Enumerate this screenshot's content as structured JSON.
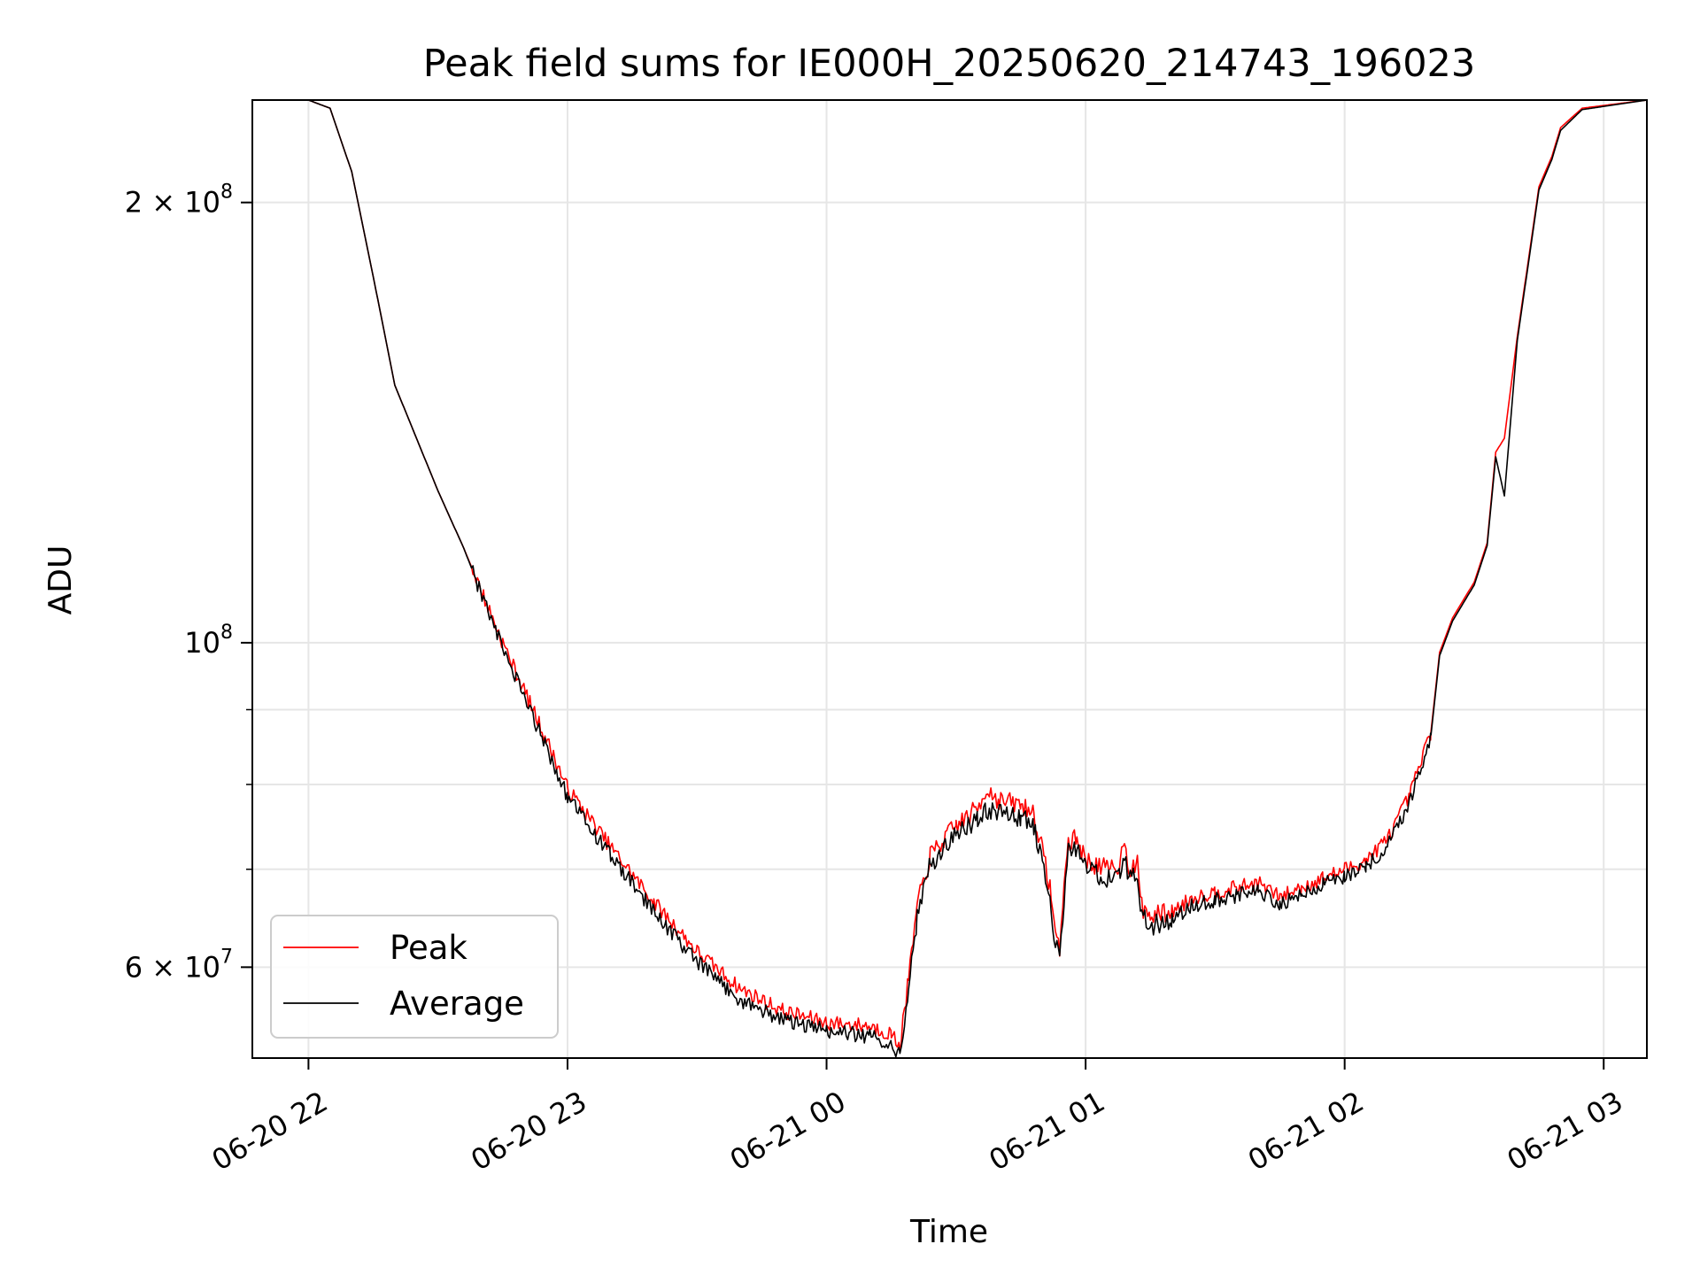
{
  "chart_data": {
    "type": "line",
    "title": "Peak field sums for IE000H_20250620_214743_196023",
    "xlabel": "Time",
    "ylabel": "ADU",
    "x_axis": {
      "kind": "datetime",
      "range": [
        "2025-06-20 21:47",
        "2025-06-21 03:10"
      ],
      "tick_values": [
        "2025-06-20 22:00",
        "2025-06-20 23:00",
        "2025-06-21 00:00",
        "2025-06-21 01:00",
        "2025-06-21 02:00",
        "2025-06-21 03:00"
      ],
      "tick_labels": [
        "06-20 22",
        "06-20 23",
        "06-21 00",
        "06-21 01",
        "06-21 02",
        "06-21 03"
      ],
      "tick_rotation_deg": 30
    },
    "y_axis": {
      "scale": "log",
      "range": [
        52000000,
        235000000
      ],
      "major_ticks": [
        {
          "value": 60000000,
          "mantissa": "6",
          "exponent": "7"
        },
        {
          "value": 100000000,
          "mantissa": "",
          "exponent": "8"
        },
        {
          "value": 200000000,
          "mantissa": "2",
          "exponent": "8"
        }
      ],
      "minor_ticks": [
        60000000,
        70000000,
        80000000,
        90000000,
        100000000,
        200000000
      ],
      "tick_base": "10",
      "tick_times": "×"
    },
    "grid": true,
    "legend": {
      "placement": "lower-left",
      "entries": [
        "Peak",
        "Average"
      ]
    },
    "series": [
      {
        "name": "Peak",
        "color": "#ff0000",
        "points": [
          [
            "2025-06-20 21:47",
            235000000
          ],
          [
            "2025-06-20 22:00",
            235000000
          ],
          [
            "2025-06-20 22:05",
            232000000
          ],
          [
            "2025-06-20 22:10",
            210000000
          ],
          [
            "2025-06-20 22:15",
            178000000
          ],
          [
            "2025-06-20 22:20",
            150000000
          ],
          [
            "2025-06-20 22:30",
            127000000
          ],
          [
            "2025-06-20 22:36",
            116000000
          ],
          [
            "2025-06-20 22:45",
            100000000
          ],
          [
            "2025-06-20 22:55",
            86000000
          ],
          [
            "2025-06-20 23:00",
            79500000
          ],
          [
            "2025-06-20 23:10",
            72500000
          ],
          [
            "2025-06-20 23:20",
            66500000
          ],
          [
            "2025-06-20 23:30",
            61500000
          ],
          [
            "2025-06-20 23:40",
            58000000
          ],
          [
            "2025-06-20 23:50",
            56000000
          ],
          [
            "2025-06-21 00:00",
            55000000
          ],
          [
            "2025-06-21 00:10",
            54700000
          ],
          [
            "2025-06-21 00:15",
            54000000
          ],
          [
            "2025-06-21 00:17",
            53000000
          ],
          [
            "2025-06-21 00:19",
            59000000
          ],
          [
            "2025-06-21 00:21",
            66000000
          ],
          [
            "2025-06-21 00:24",
            71500000
          ],
          [
            "2025-06-21 00:30",
            75000000
          ],
          [
            "2025-06-21 00:35",
            77000000
          ],
          [
            "2025-06-21 00:37",
            79500000
          ],
          [
            "2025-06-21 00:40",
            78000000
          ],
          [
            "2025-06-21 00:45",
            77500000
          ],
          [
            "2025-06-21 00:48",
            76500000
          ],
          [
            "2025-06-21 00:50",
            72000000
          ],
          [
            "2025-06-21 00:52",
            67500000
          ],
          [
            "2025-06-21 00:53",
            63000000
          ],
          [
            "2025-06-21 00:54",
            62000000
          ],
          [
            "2025-06-21 00:55",
            68000000
          ],
          [
            "2025-06-21 00:56",
            73000000
          ],
          [
            "2025-06-21 00:58",
            73500000
          ],
          [
            "2025-06-21 01:00",
            71000000
          ],
          [
            "2025-06-21 01:05",
            70000000
          ],
          [
            "2025-06-21 01:08",
            70500000
          ],
          [
            "2025-06-21 01:09",
            74000000
          ],
          [
            "2025-06-21 01:10",
            70000000
          ],
          [
            "2025-06-21 01:12",
            70500000
          ],
          [
            "2025-06-21 01:13",
            66000000
          ],
          [
            "2025-06-21 01:15",
            65000000
          ],
          [
            "2025-06-21 01:20",
            65500000
          ],
          [
            "2025-06-21 01:25",
            67000000
          ],
          [
            "2025-06-21 01:30",
            67500000
          ],
          [
            "2025-06-21 01:35",
            68000000
          ],
          [
            "2025-06-21 01:40",
            68500000
          ],
          [
            "2025-06-21 01:45",
            67000000
          ],
          [
            "2025-06-21 01:50",
            68000000
          ],
          [
            "2025-06-21 01:55",
            69000000
          ],
          [
            "2025-06-21 02:00",
            70000000
          ],
          [
            "2025-06-21 02:05",
            71000000
          ],
          [
            "2025-06-21 02:10",
            73500000
          ],
          [
            "2025-06-21 02:15",
            78500000
          ],
          [
            "2025-06-21 02:20",
            87000000
          ],
          [
            "2025-06-21 02:22",
            98500000
          ],
          [
            "2025-06-21 02:25",
            104000000
          ],
          [
            "2025-06-21 02:30",
            110000000
          ],
          [
            "2025-06-21 02:33",
            117000000
          ],
          [
            "2025-06-21 02:35",
            135000000
          ],
          [
            "2025-06-21 02:37",
            138000000
          ],
          [
            "2025-06-21 02:40",
            162000000
          ],
          [
            "2025-06-21 02:45",
            205000000
          ],
          [
            "2025-06-21 02:48",
            215000000
          ],
          [
            "2025-06-21 02:50",
            225000000
          ],
          [
            "2025-06-21 02:55",
            232000000
          ],
          [
            "2025-06-21 03:10",
            235000000
          ]
        ]
      },
      {
        "name": "Average",
        "color": "#000000",
        "points": [
          [
            "2025-06-20 21:47",
            235000000
          ],
          [
            "2025-06-20 22:00",
            235000000
          ],
          [
            "2025-06-20 22:05",
            232000000
          ],
          [
            "2025-06-20 22:10",
            210000000
          ],
          [
            "2025-06-20 22:15",
            178000000
          ],
          [
            "2025-06-20 22:20",
            150000000
          ],
          [
            "2025-06-20 22:30",
            127000000
          ],
          [
            "2025-06-20 22:36",
            116000000
          ],
          [
            "2025-06-20 22:45",
            99000000
          ],
          [
            "2025-06-20 22:55",
            85000000
          ],
          [
            "2025-06-20 23:00",
            78500000
          ],
          [
            "2025-06-20 23:10",
            71500000
          ],
          [
            "2025-06-20 23:20",
            65500000
          ],
          [
            "2025-06-20 23:30",
            60500000
          ],
          [
            "2025-06-20 23:40",
            57000000
          ],
          [
            "2025-06-20 23:50",
            55200000
          ],
          [
            "2025-06-21 00:00",
            54300000
          ],
          [
            "2025-06-21 00:10",
            53800000
          ],
          [
            "2025-06-21 00:15",
            53200000
          ],
          [
            "2025-06-21 00:17",
            52300000
          ],
          [
            "2025-06-21 00:19",
            58000000
          ],
          [
            "2025-06-21 00:21",
            65000000
          ],
          [
            "2025-06-21 00:24",
            70500000
          ],
          [
            "2025-06-21 00:30",
            74000000
          ],
          [
            "2025-06-21 00:35",
            75800000
          ],
          [
            "2025-06-21 00:37",
            77000000
          ],
          [
            "2025-06-21 00:40",
            76500000
          ],
          [
            "2025-06-21 00:45",
            76000000
          ],
          [
            "2025-06-21 00:48",
            75000000
          ],
          [
            "2025-06-21 00:50",
            70500000
          ],
          [
            "2025-06-21 00:52",
            66000000
          ],
          [
            "2025-06-21 00:53",
            62000000
          ],
          [
            "2025-06-21 00:54",
            61000000
          ],
          [
            "2025-06-21 00:55",
            67000000
          ],
          [
            "2025-06-21 00:56",
            72000000
          ],
          [
            "2025-06-21 00:58",
            72500000
          ],
          [
            "2025-06-21 01:00",
            70000000
          ],
          [
            "2025-06-21 01:05",
            69000000
          ],
          [
            "2025-06-21 01:08",
            69500000
          ],
          [
            "2025-06-21 01:09",
            71500000
          ],
          [
            "2025-06-21 01:10",
            69000000
          ],
          [
            "2025-06-21 01:12",
            69500000
          ],
          [
            "2025-06-21 01:13",
            65000000
          ],
          [
            "2025-06-21 01:15",
            64000000
          ],
          [
            "2025-06-21 01:20",
            64700000
          ],
          [
            "2025-06-21 01:25",
            66200000
          ],
          [
            "2025-06-21 01:30",
            66700000
          ],
          [
            "2025-06-21 01:35",
            67200000
          ],
          [
            "2025-06-21 01:40",
            67700000
          ],
          [
            "2025-06-21 01:45",
            66300000
          ],
          [
            "2025-06-21 01:50",
            67300000
          ],
          [
            "2025-06-21 01:55",
            68300000
          ],
          [
            "2025-06-21 02:00",
            69300000
          ],
          [
            "2025-06-21 02:05",
            70300000
          ],
          [
            "2025-06-21 02:10",
            72800000
          ],
          [
            "2025-06-21 02:15",
            77800000
          ],
          [
            "2025-06-21 02:20",
            86500000
          ],
          [
            "2025-06-21 02:22",
            98000000
          ],
          [
            "2025-06-21 02:25",
            103500000
          ],
          [
            "2025-06-21 02:30",
            109500000
          ],
          [
            "2025-06-21 02:33",
            116500000
          ],
          [
            "2025-06-21 02:35",
            134000000
          ],
          [
            "2025-06-21 02:37",
            126000000
          ],
          [
            "2025-06-21 02:40",
            161000000
          ],
          [
            "2025-06-21 02:45",
            204000000
          ],
          [
            "2025-06-21 02:48",
            214000000
          ],
          [
            "2025-06-21 02:50",
            224000000
          ],
          [
            "2025-06-21 02:55",
            231500000
          ],
          [
            "2025-06-21 03:10",
            235000000
          ]
        ]
      }
    ]
  }
}
